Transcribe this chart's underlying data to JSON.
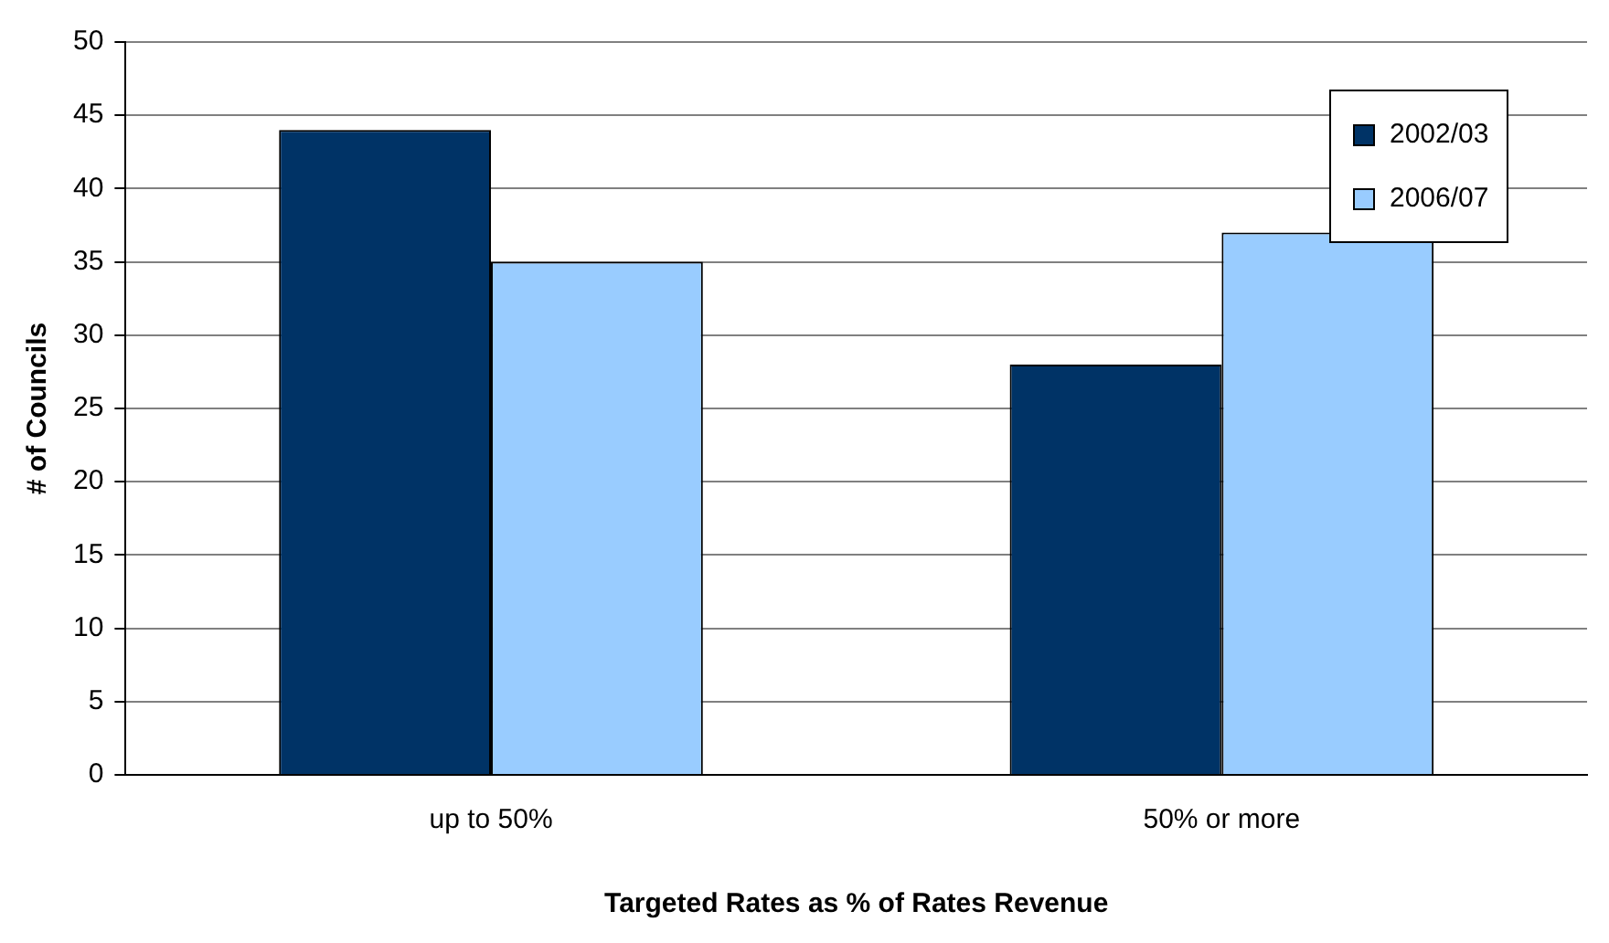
{
  "chart_data": {
    "type": "bar",
    "xlabel": "Targeted Rates as % of Rates Revenue",
    "ylabel": "# of Councils",
    "categories": [
      "up to 50%",
      "50% or more"
    ],
    "series": [
      {
        "name": "2002/03",
        "color": "#003366",
        "values": [
          44,
          28
        ]
      },
      {
        "name": "2006/07",
        "color": "#99ccff",
        "values": [
          35,
          37
        ]
      }
    ],
    "ylim": [
      0,
      50
    ],
    "yticks": [
      0,
      5,
      10,
      15,
      20,
      25,
      30,
      35,
      40,
      45,
      50
    ],
    "grid": "y",
    "legend": "top right"
  }
}
